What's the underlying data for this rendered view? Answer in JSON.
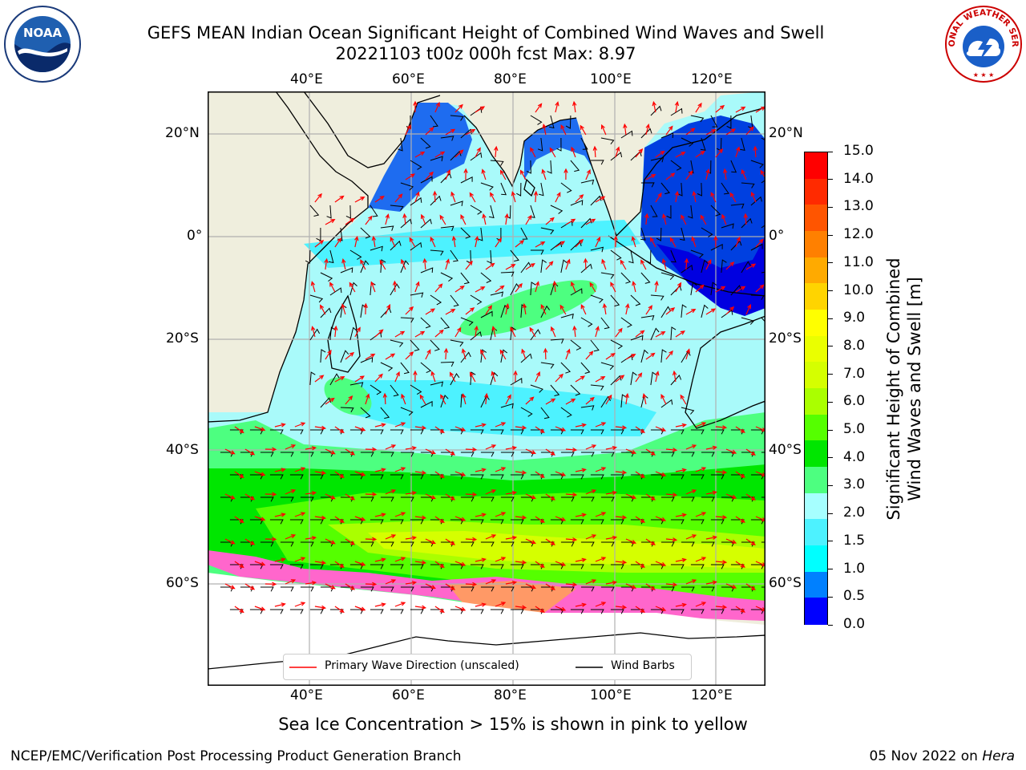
{
  "header": {
    "title_line1": "GEFS MEAN Indian Ocean Significant Height of Combined Wind Waves and Swell",
    "title_line2": "20221103 t00z 000h fcst   Max: 8.97",
    "logo_left": "noaa-logo",
    "logo_right": "national-weather-service-logo",
    "logo_left_text": "NOAA",
    "logo_right_text": "NATIONAL WEATHER SERVICE"
  },
  "map": {
    "lon_ticks_top": [
      "40°E",
      "60°E",
      "80°E",
      "100°E",
      "120°E"
    ],
    "lon_ticks_bottom": [
      "40°E",
      "60°E",
      "80°E",
      "100°E",
      "120°E"
    ],
    "lat_ticks_left": [
      "20°N",
      "0°",
      "20°S",
      "40°S",
      "60°S"
    ],
    "lat_ticks_right": [
      "20°N",
      "0°",
      "20°S",
      "40°S",
      "60°S"
    ],
    "colors": {
      "land": "#efeedd",
      "ocean_calm": "#a9fafa",
      "sea_ice": "#ff66cc"
    }
  },
  "legend": {
    "wave_label": "Primary Wave Direction (unscaled)",
    "wind_label": "Wind Barbs",
    "wave_color": "#ff0000",
    "wind_color": "#000000"
  },
  "colorbar": {
    "label_line1": "Significant Height of Combined",
    "label_line2": "Wind Waves and Swell [m]",
    "ticks": [
      "15.0",
      "14.0",
      "13.0",
      "12.0",
      "11.0",
      "10.0",
      "9.0",
      "8.0",
      "7.0",
      "6.0",
      "5.0",
      "4.0",
      "3.0",
      "2.0",
      "1.5",
      "1.0",
      "0.5",
      "0.0"
    ],
    "colors_top_to_bottom": [
      "#ff0000",
      "#ff2a00",
      "#ff5500",
      "#ff8000",
      "#ffaa00",
      "#ffd400",
      "#ffff00",
      "#eaff00",
      "#d5ff00",
      "#aaff00",
      "#55ff00",
      "#00e600",
      "#4dff80",
      "#a6ffff",
      "#4df2ff",
      "#00ffff",
      "#0080ff",
      "#0000ff"
    ]
  },
  "notes": {
    "sea_ice": "Sea Ice Concentration > 15% is shown in pink to yellow"
  },
  "footer": {
    "credit": "NCEP/EMC/Verification Post Processing Product Generation Branch",
    "date": "05 Nov 2022 on ",
    "machine": "Hera"
  }
}
